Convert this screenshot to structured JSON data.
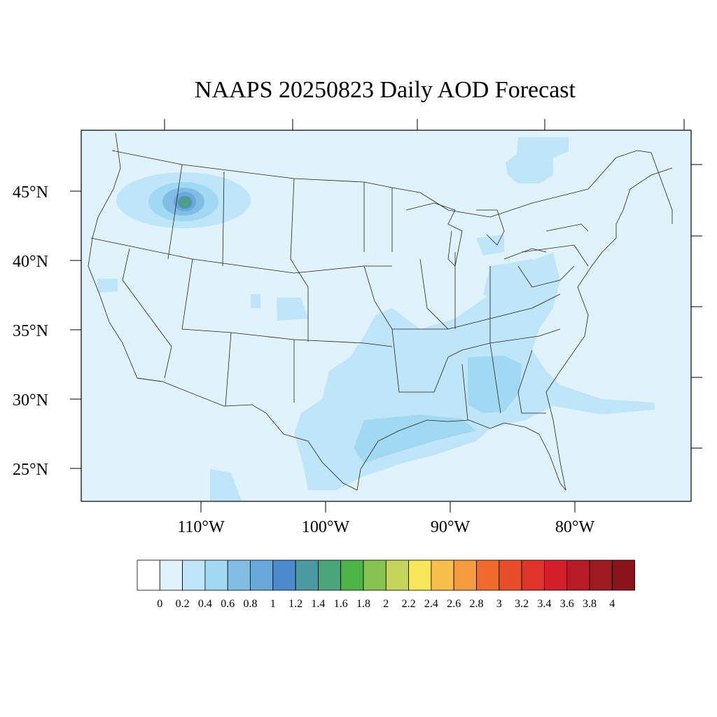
{
  "title": "NAAPS 20250823 Daily AOD Forecast",
  "lat_labels": [
    "45°N",
    "40°N",
    "35°N",
    "30°N",
    "25°N"
  ],
  "lon_labels": [
    "110°W",
    "100°W",
    "90°W",
    "80°W"
  ],
  "colorbar": {
    "tick_labels": [
      "0",
      "0.2",
      "0.4",
      "0.6",
      "0.8",
      "1",
      "1.2",
      "1.4",
      "1.6",
      "1.8",
      "2",
      "2.2",
      "2.4",
      "2.6",
      "2.8",
      "3",
      "3.2",
      "3.4",
      "3.6",
      "3.8",
      "4"
    ],
    "colors": [
      "#ffffff",
      "#e0f3fb",
      "#bfe6f8",
      "#a1d9f2",
      "#82bde6",
      "#68a8da",
      "#4a8ccb",
      "#4a9aa0",
      "#4aa67a",
      "#4db548",
      "#86c350",
      "#c3d65a",
      "#f5e65a",
      "#f6bf4b",
      "#f59a3d",
      "#f06a2c",
      "#e84d2a",
      "#e03329",
      "#d2202a",
      "#b51c25",
      "#9d1a20",
      "#8a141c"
    ]
  },
  "map_colors": {
    "background": "#e0f3fb",
    "light": "#bfe6f8",
    "mid": "#a1d9f2",
    "dark": "#82bde6",
    "core": "#68a8da",
    "peak": "#4a9aa0",
    "hot": "#4aa67a"
  }
}
